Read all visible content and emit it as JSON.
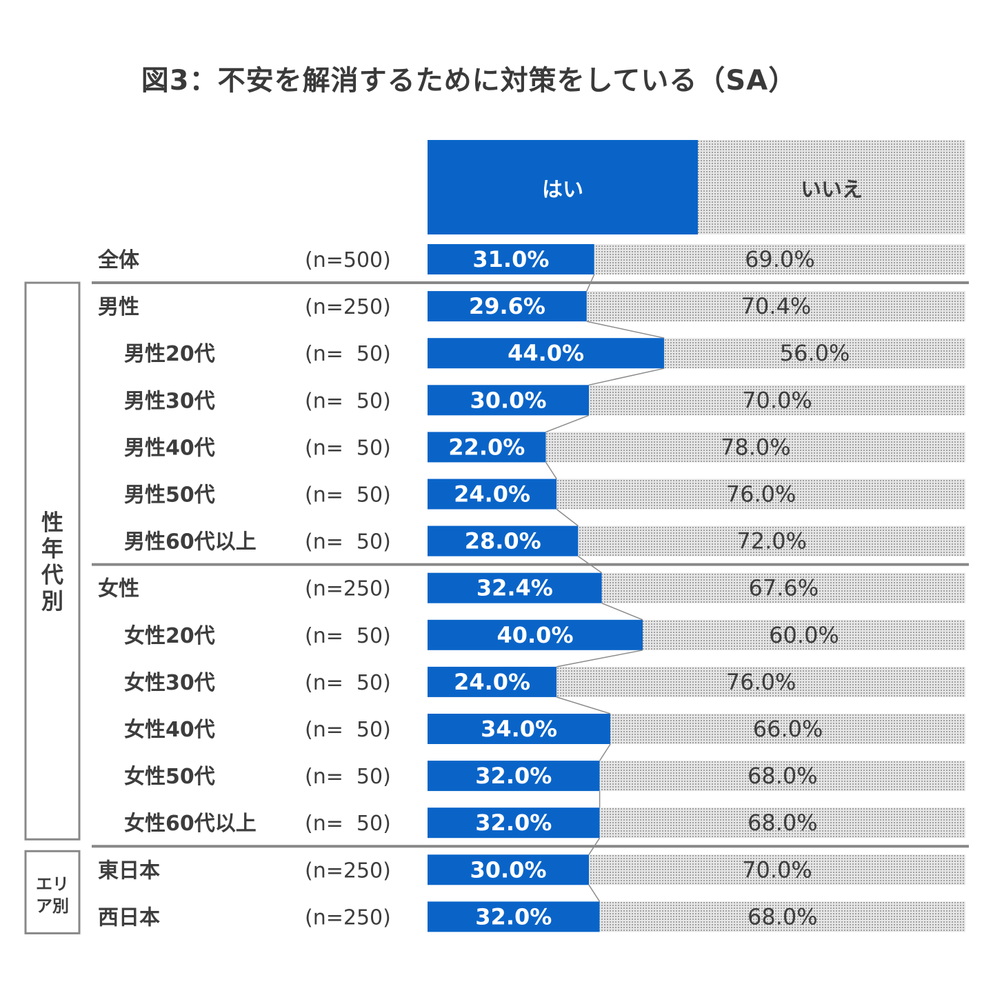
{
  "title": "図3：不安を解消するために対策をしている（SA）",
  "groups": [
    {
      "label_chars": [
        "性",
        "年",
        "代",
        "別"
      ]
    },
    {
      "label_lines": [
        "エリ",
        "ア別"
      ]
    }
  ],
  "colors": {
    "yes": "#0a64c8",
    "no_fill": "#e4e4e4",
    "no_dots": "#9a9a9a",
    "line": "#8a8a8a"
  },
  "chart_data": {
    "type": "bar",
    "stacked": true,
    "orientation": "horizontal",
    "xlim": [
      0,
      100
    ],
    "legend": [
      "はい",
      "いいえ"
    ],
    "categories": [
      "全体",
      "男性",
      "男性20代",
      "男性30代",
      "男性40代",
      "男性50代",
      "男性60代以上",
      "女性",
      "女性20代",
      "女性30代",
      "女性40代",
      "女性50代",
      "女性60代以上",
      "東日本",
      "西日本"
    ],
    "n_labels": [
      "(n=500)",
      "(n=250)",
      "(n=  50)",
      "(n=  50)",
      "(n=  50)",
      "(n=  50)",
      "(n=  50)",
      "(n=250)",
      "(n=  50)",
      "(n=  50)",
      "(n=  50)",
      "(n=  50)",
      "(n=  50)",
      "(n=250)",
      "(n=250)"
    ],
    "series": [
      {
        "name": "はい",
        "values": [
          31.0,
          29.6,
          44.0,
          30.0,
          22.0,
          24.0,
          28.0,
          32.4,
          40.0,
          24.0,
          34.0,
          32.0,
          32.0,
          30.0,
          32.0
        ]
      },
      {
        "name": "いいえ",
        "values": [
          69.0,
          70.4,
          56.0,
          70.0,
          78.0,
          76.0,
          72.0,
          67.6,
          60.0,
          76.0,
          66.0,
          68.0,
          68.0,
          70.0,
          68.0
        ]
      }
    ]
  }
}
